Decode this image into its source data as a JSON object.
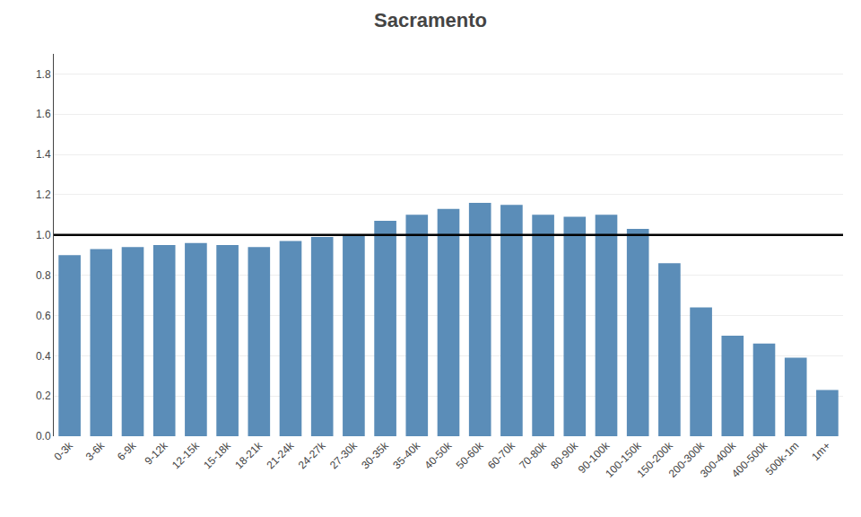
{
  "chart_data": {
    "type": "bar",
    "title": "Sacramento",
    "categories": [
      "0-3k",
      "3-6k",
      "6-9k",
      "9-12k",
      "12-15k",
      "15-18k",
      "18-21k",
      "21-24k",
      "24-27k",
      "27-30k",
      "30-35k",
      "35-40k",
      "40-50k",
      "50-60k",
      "60-70k",
      "70-80k",
      "80-90k",
      "90-100k",
      "100-150k",
      "150-200k",
      "200-300k",
      "300-400k",
      "400-500k",
      "500k-1m",
      "1m+"
    ],
    "values": [
      0.9,
      0.93,
      0.94,
      0.95,
      0.96,
      0.95,
      0.94,
      0.97,
      0.99,
      1.0,
      1.07,
      1.1,
      1.13,
      1.16,
      1.15,
      1.1,
      1.09,
      1.1,
      1.03,
      0.86,
      0.64,
      0.5,
      0.46,
      0.39,
      0.23
    ],
    "color": "#5b8db8",
    "reference_line": 1.0,
    "ylim": [
      0.0,
      1.9
    ],
    "yticks": [
      {
        "value": 0.0,
        "label": "0.0"
      },
      0.2,
      0.4,
      0.6,
      0.8,
      {
        "value": 1.0,
        "label": "1.0"
      },
      1.2,
      1.4,
      1.6,
      1.8
    ],
    "grid": true
  }
}
